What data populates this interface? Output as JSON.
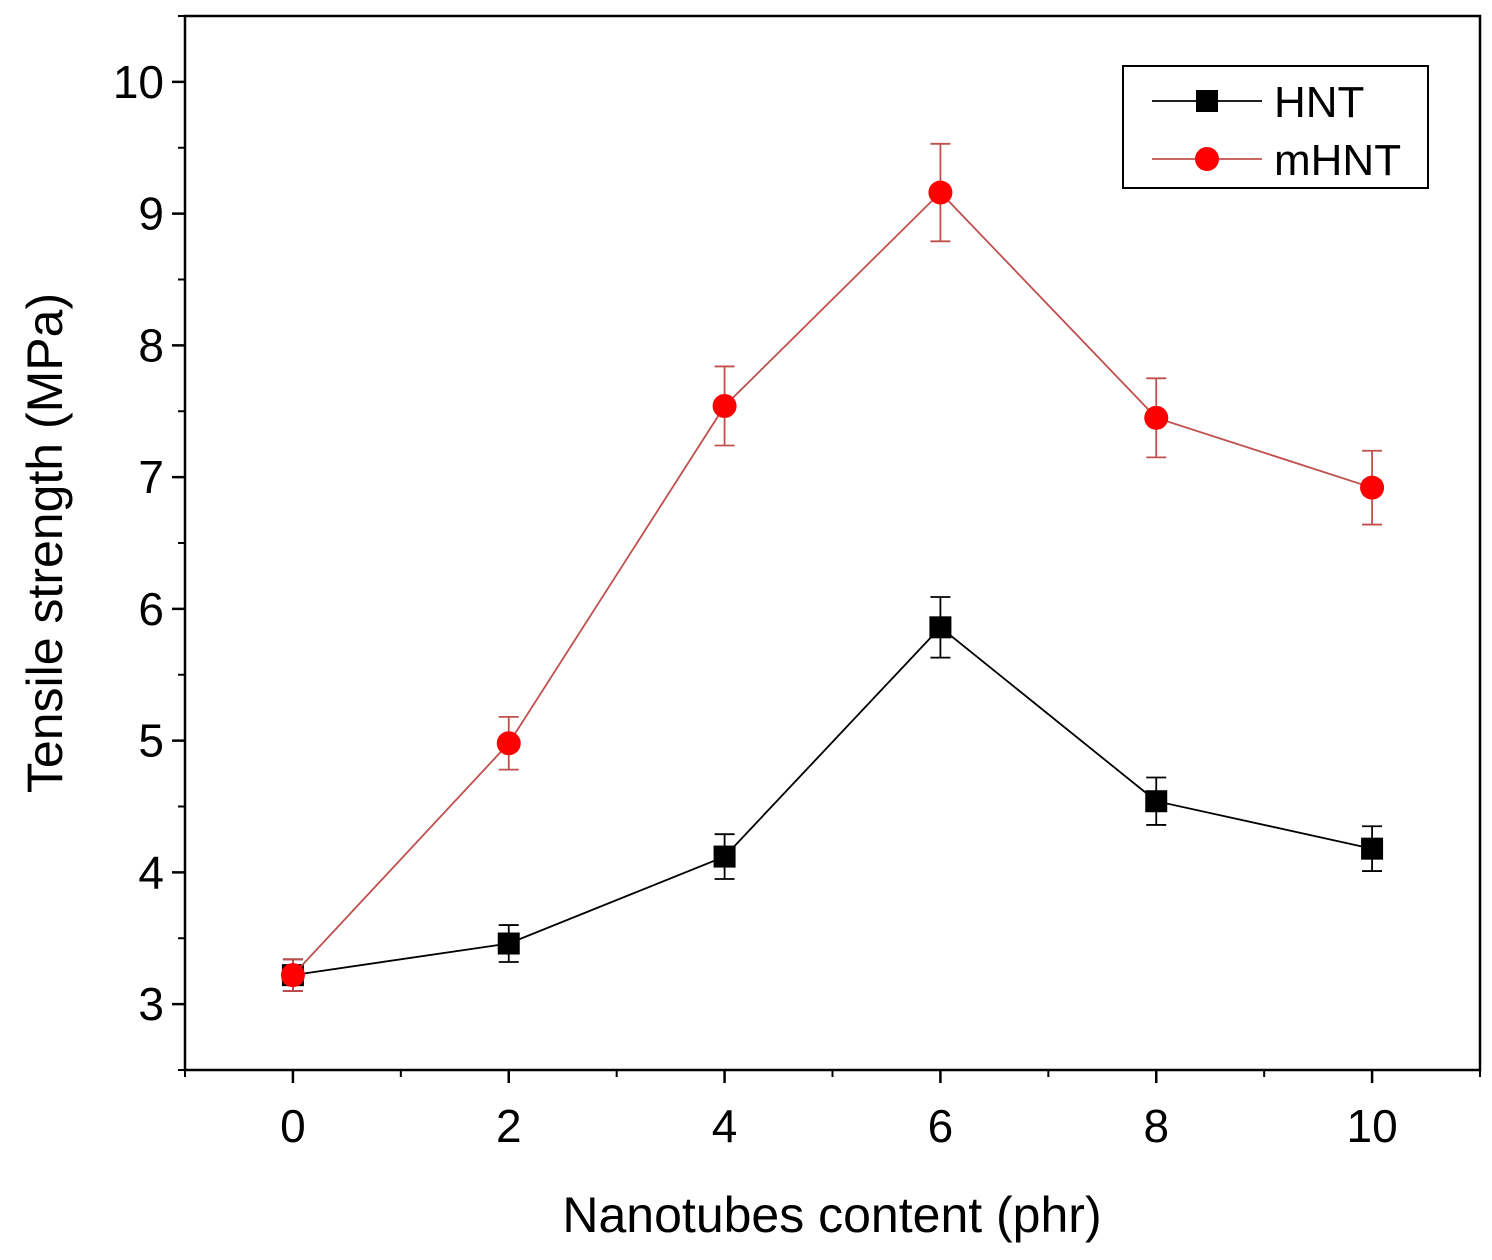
{
  "chart_data": {
    "type": "line",
    "title": "",
    "xlabel": "Nanotubes content (phr)",
    "ylabel": "Tensile strength (MPa)",
    "xlim": [
      -1,
      11
    ],
    "ylim": [
      2.5,
      10.5
    ],
    "x_ticks": [
      "0",
      "2",
      "4",
      "6",
      "8",
      "10"
    ],
    "y_ticks": [
      "3",
      "4",
      "5",
      "6",
      "7",
      "8",
      "9",
      "10"
    ],
    "grid": false,
    "legend_position": "top-right",
    "x": [
      0,
      2,
      4,
      6,
      8,
      10
    ],
    "series": [
      {
        "name": "HNT",
        "color": "#000000",
        "marker": "square",
        "values": [
          3.22,
          3.46,
          4.12,
          5.86,
          4.54,
          4.18
        ],
        "errors": [
          0.12,
          0.14,
          0.17,
          0.23,
          0.18,
          0.17
        ]
      },
      {
        "name": "mHNT",
        "color": "#ff0000",
        "line_color": "#c0504d",
        "marker": "circle",
        "values": [
          3.22,
          4.98,
          7.54,
          9.16,
          7.45,
          6.92
        ],
        "errors": [
          0.12,
          0.2,
          0.3,
          0.37,
          0.3,
          0.28
        ]
      }
    ]
  }
}
